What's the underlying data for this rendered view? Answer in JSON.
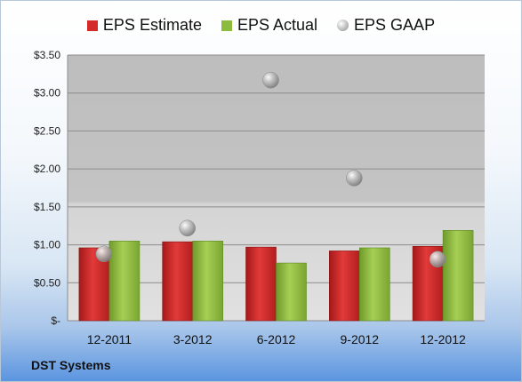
{
  "chart_data": {
    "type": "bar",
    "categories": [
      "12-2011",
      "3-2012",
      "6-2012",
      "9-2012",
      "12-2012"
    ],
    "series": [
      {
        "name": "EPS Estimate",
        "type": "bar",
        "color": "#d42a2a",
        "values": [
          0.96,
          1.04,
          0.97,
          0.92,
          0.98
        ]
      },
      {
        "name": "EPS Actual",
        "type": "bar",
        "color": "#8dbb3e",
        "values": [
          1.05,
          1.05,
          0.76,
          0.96,
          1.19
        ]
      },
      {
        "name": "EPS GAAP",
        "type": "scatter",
        "color": "#a8a8a8",
        "values": [
          0.88,
          1.22,
          3.17,
          1.88,
          0.81
        ]
      }
    ],
    "ylim": [
      0,
      3.5
    ],
    "yticks": [
      0,
      0.5,
      1.0,
      1.5,
      2.0,
      2.5,
      3.0,
      3.5
    ],
    "ytick_labels": [
      "$-",
      "$0.50",
      "$1.00",
      "$1.50",
      "$2.00",
      "$2.50",
      "$3.00",
      "$3.50"
    ],
    "grid": true,
    "legend_position": "top-center"
  },
  "legend": {
    "estimate": "EPS Estimate",
    "actual": "EPS Actual",
    "gaap": "EPS GAAP"
  },
  "company": "DST Systems"
}
